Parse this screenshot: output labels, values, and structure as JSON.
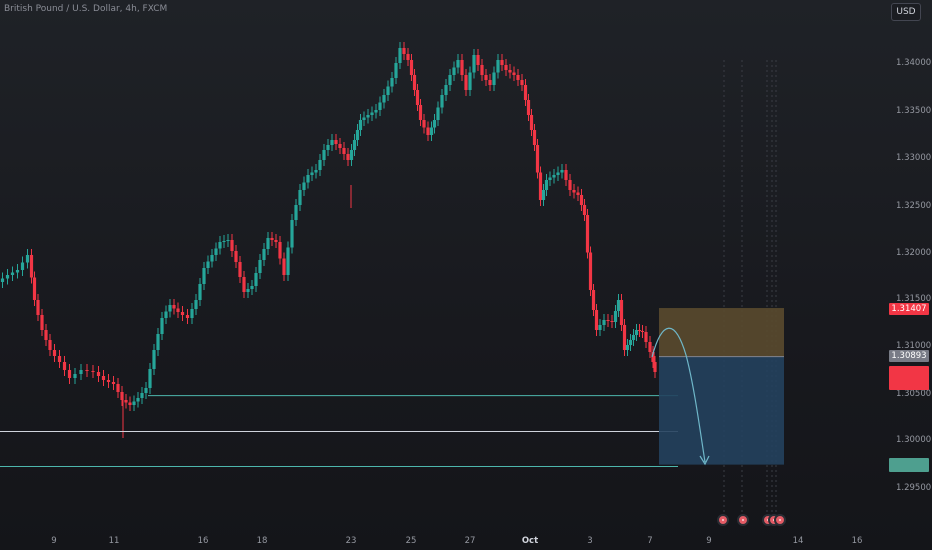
{
  "header": {
    "symbol_title": "British Pound / U.S. Dollar, 4h, FXCM",
    "currency_button": "USD"
  },
  "price_axis": {
    "ticks": [
      "1.34000",
      "1.33500",
      "1.33000",
      "1.32500",
      "1.32000",
      "1.31500",
      "1.31000",
      "1.30500",
      "1.30000",
      "1.29500"
    ],
    "badges": {
      "stop_price": "1.31407",
      "entry_price": "1.30893"
    }
  },
  "time_axis": {
    "ticks": [
      "9",
      "11",
      "16",
      "18",
      "23",
      "25",
      "27",
      "Oct",
      "3",
      "7",
      "9",
      "14",
      "16"
    ]
  },
  "colors": {
    "up_candle": "#26a69a",
    "down_candle": "#f23645",
    "horizontal_line": "#4db6ac",
    "risk_zone": "#5a4a2e",
    "reward_zone": "#24415e",
    "projection_arrow": "#6fb7c9",
    "event_marker": "#e45c66"
  },
  "drawings": {
    "horizontal_line_prices": [
      1.3048,
      1.301,
      1.2973
    ],
    "position": {
      "stop": 1.31407,
      "entry": 1.30893,
      "target": 1.2975
    }
  },
  "event_markers": [
    {
      "icon": "event-flag-icon"
    },
    {
      "icon": "event-flag-icon"
    },
    {
      "icon": "event-flag-icon"
    },
    {
      "icon": "event-flag-icon"
    },
    {
      "icon": "event-flag-icon"
    }
  ]
}
